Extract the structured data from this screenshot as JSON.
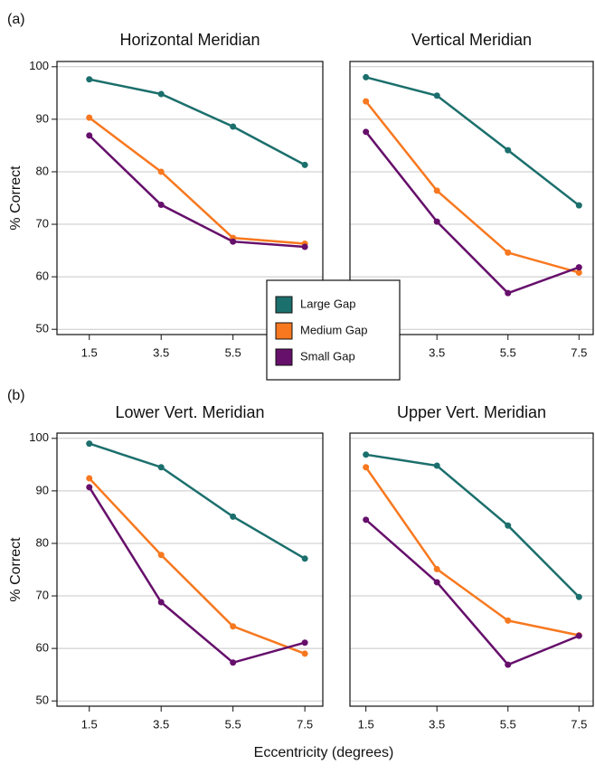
{
  "panel_labels": [
    "(a)",
    "(b)"
  ],
  "x_label": "Eccentricity (degrees)",
  "chart_data": [
    {
      "type": "line",
      "title": "Horizontal Meridian",
      "y_label": "% Correct",
      "x": [
        1.5,
        3.5,
        5.5,
        7.5
      ],
      "xlim": [
        0.6,
        8.0
      ],
      "xticks": [
        1.5,
        3.5,
        5.5,
        7.5
      ],
      "ylim": [
        49,
        101
      ],
      "yticks": [
        50,
        60,
        70,
        80,
        90,
        100
      ],
      "grid": true,
      "series": [
        {
          "name": "Large Gap",
          "color": "#1b6f6c",
          "values": [
            97.6,
            94.8,
            88.6,
            81.3
          ]
        },
        {
          "name": "Medium Gap",
          "color": "#f7781f",
          "values": [
            90.3,
            80.0,
            67.4,
            66.3
          ]
        },
        {
          "name": "Small Gap",
          "color": "#660f6b",
          "values": [
            86.9,
            73.7,
            66.7,
            65.7
          ]
        }
      ]
    },
    {
      "type": "line",
      "title": "Vertical Meridian",
      "x": [
        1.5,
        3.5,
        5.5,
        7.5
      ],
      "xlim": [
        1.05,
        7.9
      ],
      "xticks": [
        1.5,
        3.5,
        5.5,
        7.5
      ],
      "ylim": [
        49,
        101
      ],
      "yticks": [
        50,
        60,
        70,
        80,
        90,
        100
      ],
      "grid": true,
      "series": [
        {
          "name": "Large Gap",
          "color": "#1b6f6c",
          "values": [
            98.0,
            94.5,
            84.1,
            73.6
          ]
        },
        {
          "name": "Medium Gap",
          "color": "#f7781f",
          "values": [
            93.4,
            76.4,
            64.6,
            60.8
          ]
        },
        {
          "name": "Small Gap",
          "color": "#660f6b",
          "values": [
            87.6,
            70.5,
            56.9,
            61.8
          ]
        }
      ]
    },
    {
      "type": "line",
      "title": "Lower Vert. Meridian",
      "y_label": "% Correct",
      "x": [
        1.5,
        3.5,
        5.5,
        7.5
      ],
      "xlim": [
        0.6,
        8.0
      ],
      "xticks": [
        1.5,
        3.5,
        5.5,
        7.5
      ],
      "ylim": [
        49,
        101
      ],
      "yticks": [
        50,
        60,
        70,
        80,
        90,
        100
      ],
      "grid": true,
      "series": [
        {
          "name": "Large Gap",
          "color": "#1b6f6c",
          "values": [
            99.0,
            94.5,
            85.1,
            77.1
          ]
        },
        {
          "name": "Medium Gap",
          "color": "#f7781f",
          "values": [
            92.4,
            77.8,
            64.2,
            59.0
          ]
        },
        {
          "name": "Small Gap",
          "color": "#660f6b",
          "values": [
            90.7,
            68.8,
            57.3,
            61.1
          ]
        }
      ]
    },
    {
      "type": "line",
      "title": "Upper Vert. Meridian",
      "x": [
        1.5,
        3.5,
        5.5,
        7.5
      ],
      "xlim": [
        1.05,
        7.9
      ],
      "xticks": [
        1.5,
        3.5,
        5.5,
        7.5
      ],
      "ylim": [
        49,
        101
      ],
      "yticks": [
        50,
        60,
        70,
        80,
        90,
        100
      ],
      "grid": true,
      "series": [
        {
          "name": "Large Gap",
          "color": "#1b6f6c",
          "values": [
            96.9,
            94.8,
            83.4,
            69.8
          ]
        },
        {
          "name": "Medium Gap",
          "color": "#f7781f",
          "values": [
            94.5,
            75.1,
            65.3,
            62.5
          ]
        },
        {
          "name": "Small Gap",
          "color": "#660f6b",
          "values": [
            84.5,
            72.6,
            56.9,
            62.4
          ]
        }
      ]
    }
  ]
}
